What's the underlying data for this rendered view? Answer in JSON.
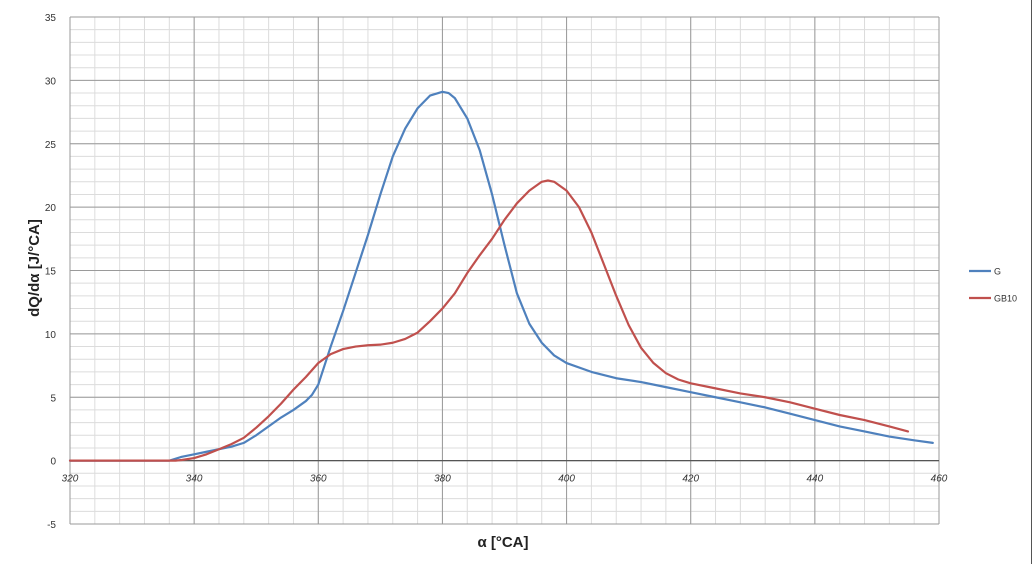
{
  "chart_data": {
    "type": "line",
    "title": "",
    "xlabel": "α [°CA]",
    "ylabel": "dQ/dα [J/°CA]",
    "xlim": [
      320,
      460
    ],
    "ylim": [
      -5,
      35
    ],
    "x_ticks": [
      320,
      340,
      360,
      380,
      400,
      420,
      440,
      460
    ],
    "x_tick_labels": [
      "320",
      "340",
      "360",
      "380",
      "400",
      "420",
      "440",
      "460"
    ],
    "y_ticks": [
      -5,
      0,
      5,
      10,
      15,
      20,
      25,
      30,
      35
    ],
    "y_tick_labels": [
      "-5",
      "0",
      "5",
      "10",
      "15",
      "20",
      "25",
      "30",
      "35"
    ],
    "grid": true,
    "legend_position": "right",
    "series": [
      {
        "name": "G",
        "color": "#4f81bd",
        "points": [
          [
            320,
            0
          ],
          [
            330,
            0
          ],
          [
            336,
            0
          ],
          [
            338,
            0.3
          ],
          [
            340,
            0.5
          ],
          [
            342,
            0.7
          ],
          [
            344,
            0.9
          ],
          [
            346,
            1.1
          ],
          [
            348,
            1.4
          ],
          [
            350,
            2.0
          ],
          [
            352,
            2.7
          ],
          [
            354,
            3.4
          ],
          [
            356,
            4.0
          ],
          [
            358,
            4.7
          ],
          [
            359,
            5.2
          ],
          [
            360,
            6.0
          ],
          [
            361,
            7.5
          ],
          [
            362,
            9.0
          ],
          [
            364,
            11.8
          ],
          [
            366,
            14.8
          ],
          [
            368,
            17.8
          ],
          [
            370,
            21.0
          ],
          [
            372,
            24.0
          ],
          [
            374,
            26.2
          ],
          [
            376,
            27.8
          ],
          [
            378,
            28.8
          ],
          [
            380,
            29.1
          ],
          [
            381,
            29.0
          ],
          [
            382,
            28.6
          ],
          [
            384,
            27.0
          ],
          [
            386,
            24.5
          ],
          [
            388,
            21.0
          ],
          [
            390,
            17.0
          ],
          [
            392,
            13.2
          ],
          [
            394,
            10.8
          ],
          [
            396,
            9.3
          ],
          [
            398,
            8.3
          ],
          [
            400,
            7.7
          ],
          [
            404,
            7.0
          ],
          [
            408,
            6.5
          ],
          [
            412,
            6.2
          ],
          [
            416,
            5.8
          ],
          [
            420,
            5.4
          ],
          [
            424,
            5.0
          ],
          [
            428,
            4.6
          ],
          [
            432,
            4.2
          ],
          [
            436,
            3.7
          ],
          [
            440,
            3.2
          ],
          [
            444,
            2.7
          ],
          [
            448,
            2.3
          ],
          [
            452,
            1.9
          ],
          [
            456,
            1.6
          ],
          [
            459,
            1.4
          ]
        ]
      },
      {
        "name": "GB10",
        "color": "#c0504d",
        "points": [
          [
            320,
            0
          ],
          [
            330,
            0
          ],
          [
            337,
            0
          ],
          [
            338,
            0.05
          ],
          [
            340,
            0.2
          ],
          [
            342,
            0.5
          ],
          [
            344,
            0.9
          ],
          [
            346,
            1.3
          ],
          [
            348,
            1.8
          ],
          [
            350,
            2.6
          ],
          [
            352,
            3.5
          ],
          [
            354,
            4.5
          ],
          [
            356,
            5.6
          ],
          [
            358,
            6.6
          ],
          [
            360,
            7.7
          ],
          [
            362,
            8.4
          ],
          [
            364,
            8.8
          ],
          [
            366,
            9.0
          ],
          [
            368,
            9.1
          ],
          [
            370,
            9.15
          ],
          [
            372,
            9.3
          ],
          [
            374,
            9.6
          ],
          [
            376,
            10.1
          ],
          [
            378,
            11.0
          ],
          [
            380,
            12.0
          ],
          [
            382,
            13.2
          ],
          [
            384,
            14.8
          ],
          [
            386,
            16.2
          ],
          [
            388,
            17.5
          ],
          [
            390,
            19.0
          ],
          [
            392,
            20.3
          ],
          [
            394,
            21.3
          ],
          [
            396,
            22.0
          ],
          [
            397,
            22.1
          ],
          [
            398,
            22.0
          ],
          [
            400,
            21.3
          ],
          [
            402,
            20.0
          ],
          [
            404,
            18.0
          ],
          [
            406,
            15.5
          ],
          [
            408,
            13.0
          ],
          [
            410,
            10.7
          ],
          [
            412,
            8.9
          ],
          [
            414,
            7.7
          ],
          [
            416,
            6.9
          ],
          [
            418,
            6.4
          ],
          [
            420,
            6.1
          ],
          [
            424,
            5.7
          ],
          [
            428,
            5.3
          ],
          [
            432,
            5.0
          ],
          [
            436,
            4.6
          ],
          [
            440,
            4.1
          ],
          [
            444,
            3.6
          ],
          [
            448,
            3.2
          ],
          [
            452,
            2.7
          ],
          [
            455,
            2.3
          ]
        ]
      }
    ]
  }
}
